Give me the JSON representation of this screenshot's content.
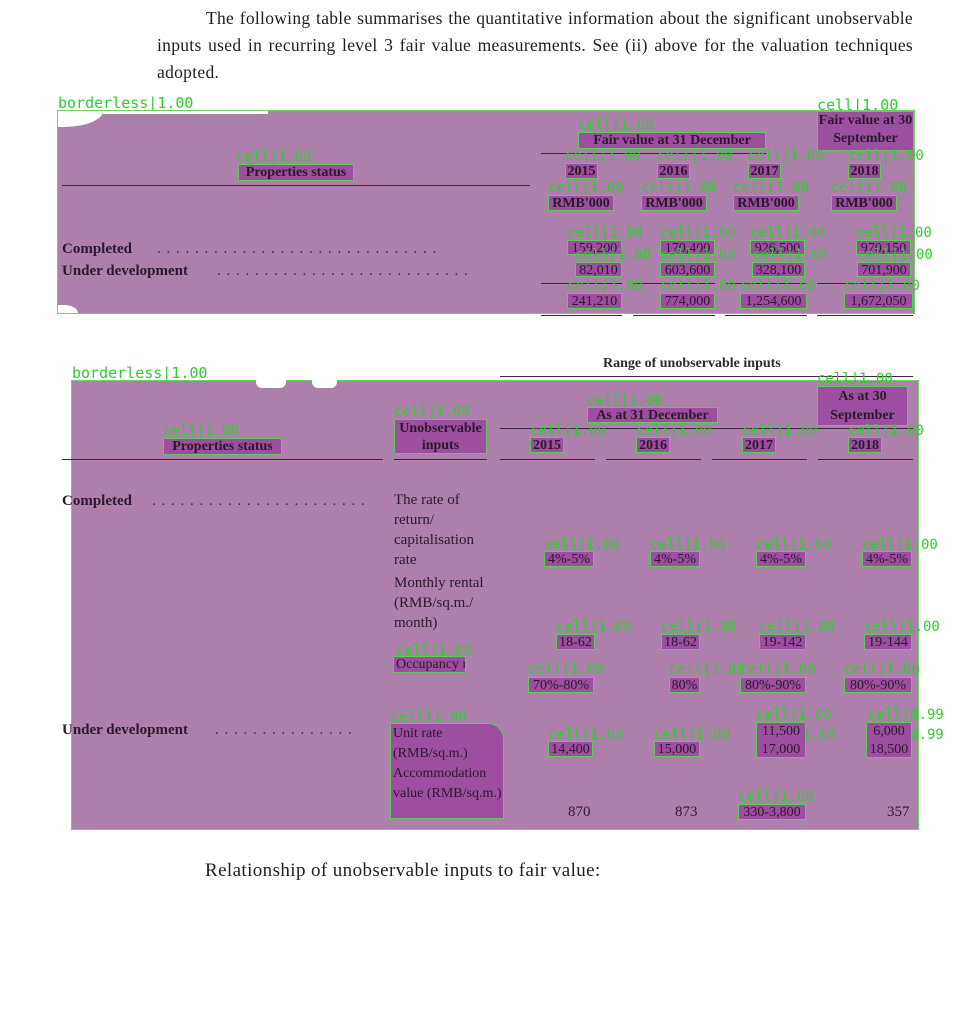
{
  "intro": {
    "text": "The following table summarises the quantitative information about the significant unobservable inputs used in recurring level 3 fair value measurements. See (ii) above for the valuation techniques adopted."
  },
  "table1": {
    "region_label": "borderless|1.00",
    "header": {
      "properties_status": "Properties status",
      "group_heading": "Fair value at 31 December",
      "last_col_heading": "Fair value at 30 September",
      "years": [
        "2015",
        "2016",
        "2017",
        "2018"
      ],
      "unit": "RMB'000"
    },
    "rows": [
      {
        "label": "Completed",
        "dots": ". . . . . . . . . . . . . . . . . . . . . . . . . . . . . .",
        "values": [
          "159,200",
          "170,400",
          "926,500",
          "970,150"
        ]
      },
      {
        "label": "Under development",
        "dots": ". . . . . . . . . . . . . . . . . . . . . . . . . . .",
        "values": [
          "82,010",
          "603,600",
          "328,100",
          "701,900"
        ]
      }
    ],
    "totals": [
      "241,210",
      "774,000",
      "1,254,600",
      "1,672,050"
    ],
    "tags": {
      "region_right": "cell|1.00",
      "cell": "cell|1.00"
    }
  },
  "table2": {
    "region_label": "borderless|1.00",
    "top_heading": "Range of unobservable inputs",
    "header": {
      "properties_status": "Properties status",
      "unobservable_inputs": "Unobservable inputs",
      "group_heading": "As at 31 December",
      "last_col_heading": "As at 30 September",
      "years": [
        "2015",
        "2016",
        "2017",
        "2018"
      ]
    },
    "completed": {
      "label": "Completed",
      "dots": ". . . . . . . . . . . . . . . . . . . . . . .",
      "inputs": [
        {
          "name": "The rate of return/ capitalisation rate",
          "values": [
            "4%-5%",
            "4%-5%",
            "4%-5%",
            "4%-5%"
          ]
        },
        {
          "name": "Monthly rental (RMB/sq.m./ month)",
          "values": [
            "18-62",
            "18-62",
            "19-142",
            "19-144"
          ]
        },
        {
          "name": "Occupancy rate",
          "values": [
            "70%-80%",
            "80%",
            "80%-90%",
            "80%-90%"
          ]
        }
      ]
    },
    "under_development": {
      "label": "Under development",
      "dots": ". . . . . . . . . . . . . . .",
      "inputs": [
        {
          "name": "Unit rate (RMB/sq.m.)",
          "values": [
            "14,400",
            "15,000",
            "11,500 17,000",
            "6,000 18,500"
          ]
        },
        {
          "name": "Accommodation value (RMB/sq.m.)",
          "values": [
            "870",
            "873",
            "330-3,800",
            "357"
          ]
        }
      ]
    },
    "tags": {
      "cell": "cell|1.00",
      "cell_099": "cell|0.99"
    }
  },
  "caption": "Relationship of unobservable inputs to fair value:"
}
